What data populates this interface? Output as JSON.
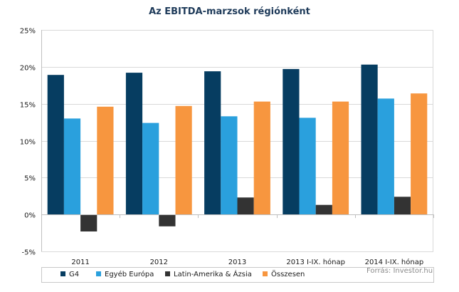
{
  "chart_data": {
    "type": "bar",
    "title": "Az EBITDA-marzsok régiónként",
    "categories": [
      "2011",
      "2012",
      "2013",
      "2013 I-IX. hónap",
      "2014 I-IX. hónap"
    ],
    "series": [
      {
        "name": "G4",
        "color": "#063d61",
        "values": [
          18.9,
          19.2,
          19.4,
          19.7,
          20.3
        ]
      },
      {
        "name": "Egyéb Európa",
        "color": "#2aa0dd",
        "values": [
          13.0,
          12.4,
          13.3,
          13.1,
          15.7
        ]
      },
      {
        "name": "Latin-Amerika & Ázsia",
        "color": "#333333",
        "values": [
          -2.3,
          -1.6,
          2.3,
          1.3,
          2.4
        ]
      },
      {
        "name": "Összesen",
        "color": "#f7963f",
        "values": [
          14.6,
          14.7,
          15.3,
          15.3,
          16.4
        ]
      }
    ],
    "ylim": [
      -5,
      25
    ],
    "yticks": [
      -5,
      0,
      5,
      10,
      15,
      20,
      25
    ],
    "ytick_labels": [
      "-5%",
      "0%",
      "5%",
      "10%",
      "15%",
      "20%",
      "25%"
    ],
    "grid": true,
    "legend_position": "bottom"
  },
  "source_note": "Forrás: Investor.hu"
}
